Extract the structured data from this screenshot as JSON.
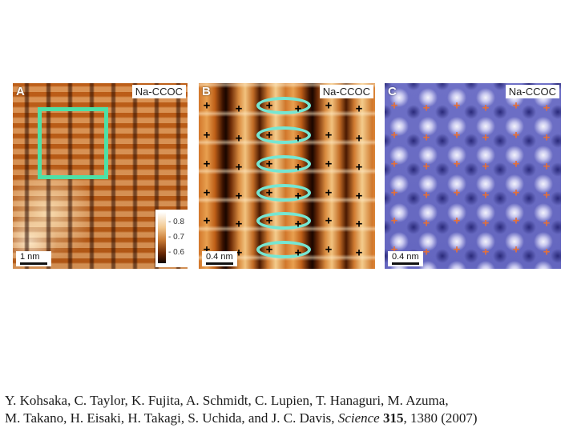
{
  "panels": {
    "a": {
      "letter": "A",
      "label": "Na-CCOC",
      "scalebar": "1 nm",
      "colorbar_ticks": [
        "0.8",
        "0.7",
        "0.6"
      ]
    },
    "b": {
      "letter": "B",
      "label": "Na-CCOC",
      "scalebar": "0.4 nm",
      "marker": "+"
    },
    "c": {
      "letter": "C",
      "label": "Na-CCOC",
      "scalebar": "0.4 nm",
      "marker": "+"
    }
  },
  "citation": {
    "authors_line1": "Y. Kohsaka, C. Taylor, K. Fujita, A. Schmidt, C. Lupien, T. Hanaguri, M. Azuma,",
    "authors_line2": "M. Takano, H. Eisaki, H. Takagi, S. Uchida, and J. C. Davis,",
    "journal": "Science",
    "volume": "315",
    "pages_year": ", 1380 (2007)"
  },
  "colors": {
    "highlight_box": "#4ee0a6",
    "ovals": "#76e6d2",
    "marker_b": "#000000",
    "marker_c": "#e3703a"
  }
}
